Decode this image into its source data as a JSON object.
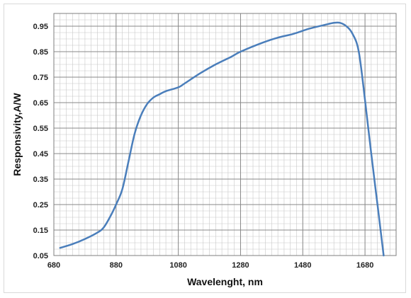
{
  "chart_data": {
    "type": "line",
    "title": "",
    "xlabel": "Wavelenght, nm",
    "ylabel": "Responsivity,A/W",
    "xlim": [
      680,
      1780
    ],
    "ylim": [
      0.05,
      1.0
    ],
    "x_ticks": [
      "680",
      "880",
      "1080",
      "1280",
      "1480",
      "1680"
    ],
    "y_ticks": [
      "0.05",
      "0.15",
      "0.25",
      "0.35",
      "0.45",
      "0.55",
      "0.65",
      "0.75",
      "0.85",
      "0.95"
    ],
    "grid": true,
    "legend": "none",
    "series": [
      {
        "color": "#4a7ebb",
        "points": [
          [
            700,
            0.08
          ],
          [
            740,
            0.095
          ],
          [
            780,
            0.115
          ],
          [
            820,
            0.14
          ],
          [
            840,
            0.16
          ],
          [
            860,
            0.2
          ],
          [
            880,
            0.25
          ],
          [
            900,
            0.31
          ],
          [
            920,
            0.42
          ],
          [
            940,
            0.53
          ],
          [
            960,
            0.6
          ],
          [
            980,
            0.645
          ],
          [
            1000,
            0.67
          ],
          [
            1020,
            0.683
          ],
          [
            1040,
            0.695
          ],
          [
            1080,
            0.71
          ],
          [
            1100,
            0.725
          ],
          [
            1150,
            0.765
          ],
          [
            1200,
            0.8
          ],
          [
            1250,
            0.83
          ],
          [
            1280,
            0.85
          ],
          [
            1350,
            0.885
          ],
          [
            1400,
            0.905
          ],
          [
            1450,
            0.92
          ],
          [
            1500,
            0.94
          ],
          [
            1550,
            0.955
          ],
          [
            1580,
            0.963
          ],
          [
            1600,
            0.963
          ],
          [
            1620,
            0.95
          ],
          [
            1640,
            0.92
          ],
          [
            1660,
            0.85
          ],
          [
            1680,
            0.66
          ],
          [
            1700,
            0.45
          ],
          [
            1720,
            0.25
          ],
          [
            1740,
            0.05
          ]
        ]
      }
    ]
  }
}
